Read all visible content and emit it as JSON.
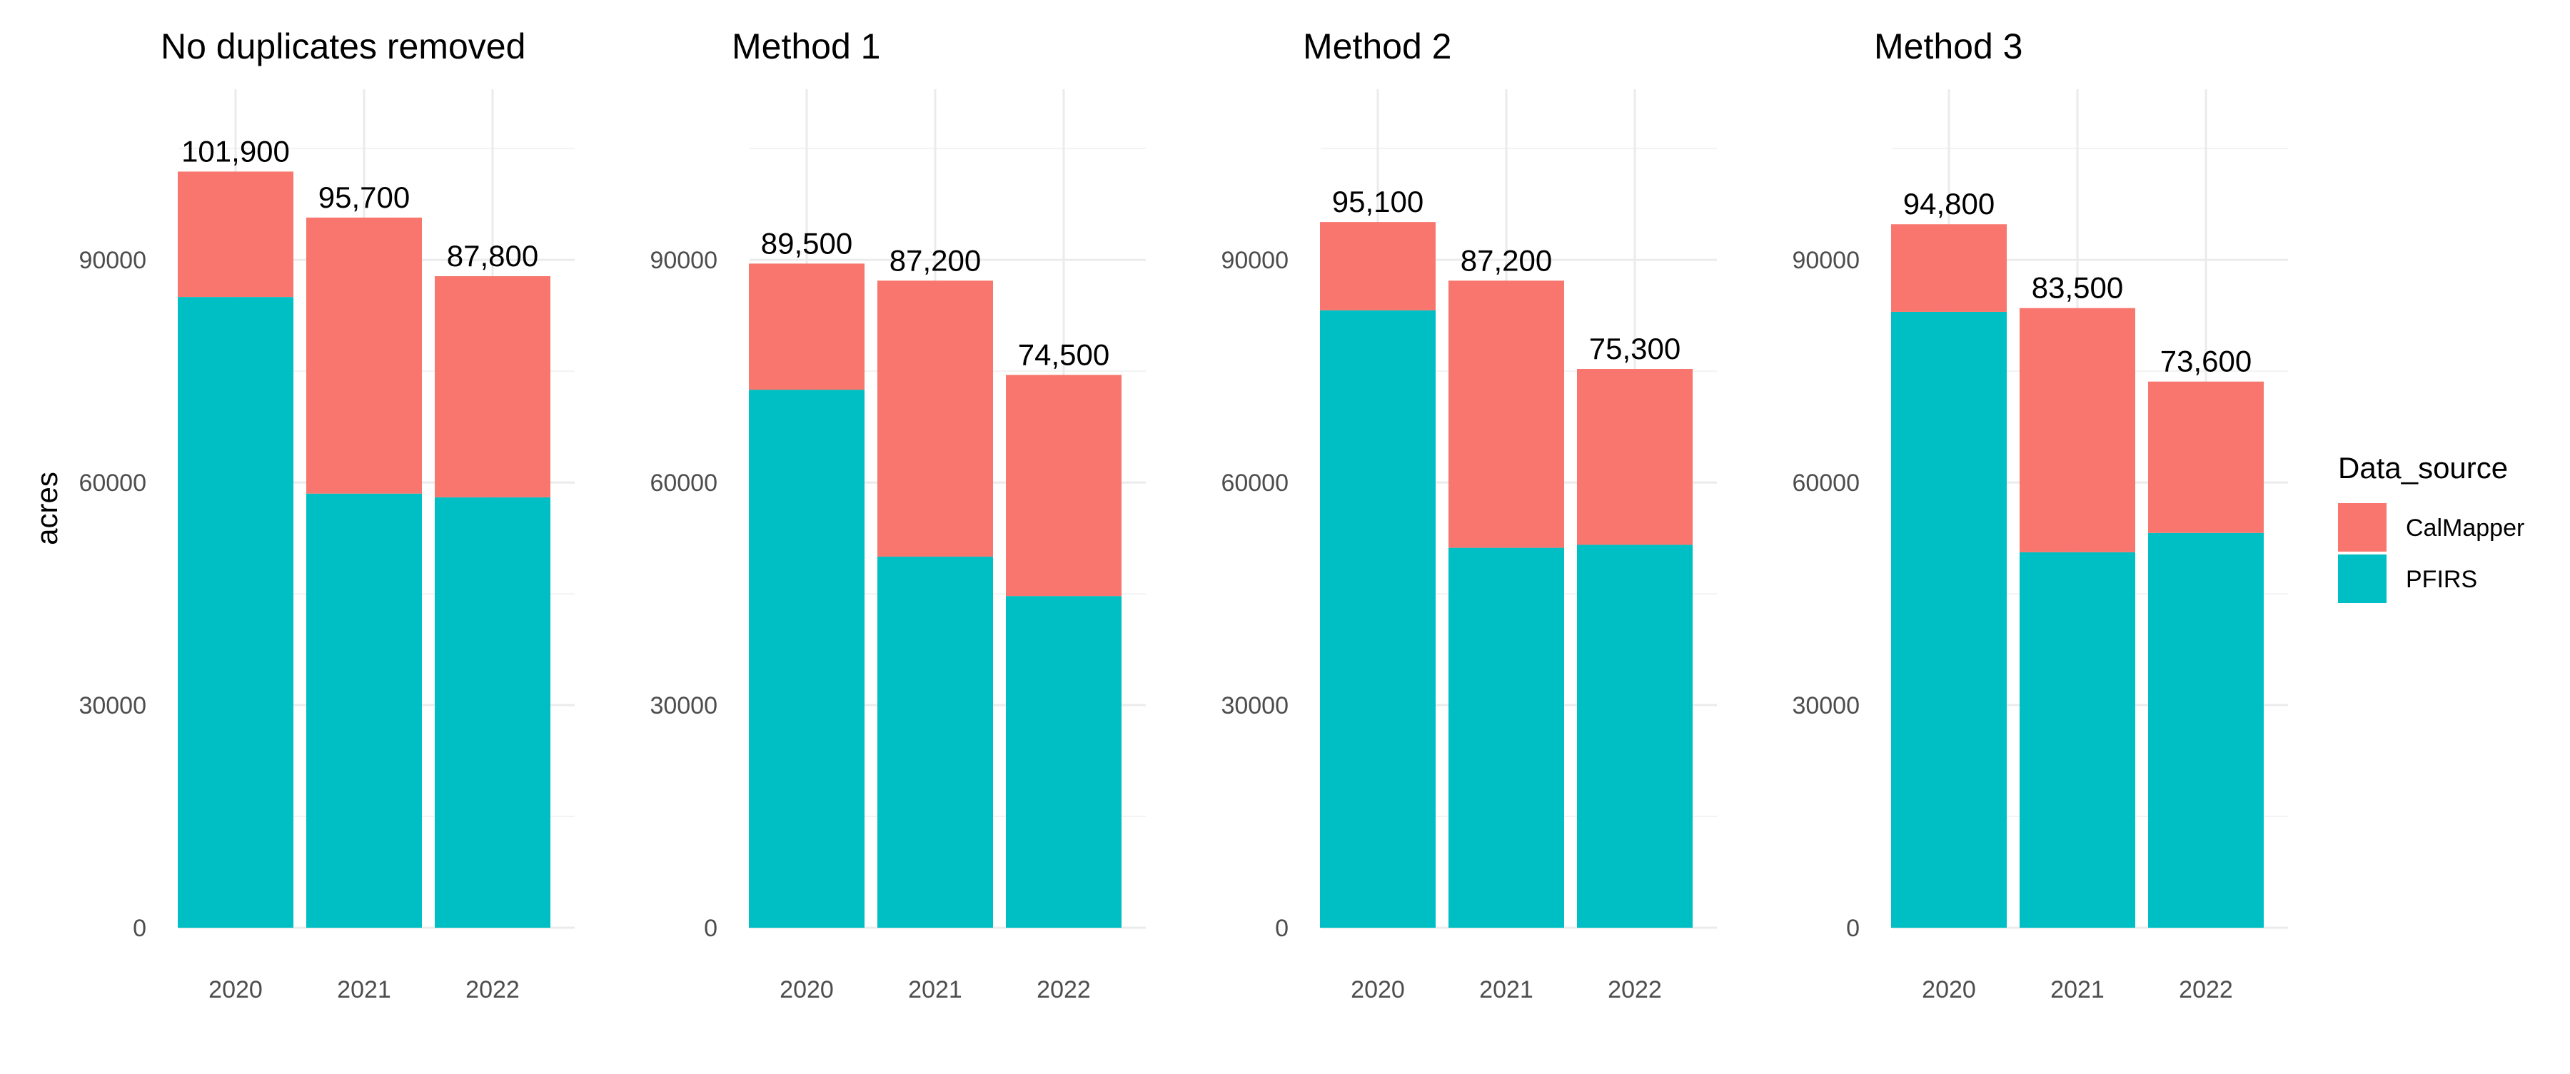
{
  "chart_data": {
    "type": "bar",
    "stacked": true,
    "ylabel": "acres",
    "xlabel": "",
    "ylim": [
      0,
      113000
    ],
    "yticks": [
      0,
      30000,
      60000,
      90000
    ],
    "grid": true,
    "colors": {
      "CalMapper": "#F8766D",
      "PFIRS": "#00BFC4"
    },
    "legend": {
      "title": "Data_source",
      "placement": "right",
      "entries": [
        "CalMapper",
        "PFIRS"
      ]
    },
    "panels": [
      {
        "title": "No duplicates removed",
        "categories": [
          "2020",
          "2021",
          "2022"
        ],
        "series": [
          {
            "name": "PFIRS",
            "values": [
              85000,
              58500,
              58000
            ]
          },
          {
            "name": "CalMapper",
            "values": [
              16900,
              37200,
              29800
            ]
          }
        ],
        "totals": [
          "101,900",
          "95,700",
          "87,800"
        ]
      },
      {
        "title": "Method 1",
        "categories": [
          "2020",
          "2021",
          "2022"
        ],
        "series": [
          {
            "name": "PFIRS",
            "values": [
              72500,
              50000,
              44700
            ]
          },
          {
            "name": "CalMapper",
            "values": [
              17000,
              37200,
              29800
            ]
          }
        ],
        "totals": [
          "89,500",
          "87,200",
          "74,500"
        ]
      },
      {
        "title": "Method 2",
        "categories": [
          "2020",
          "2021",
          "2022"
        ],
        "series": [
          {
            "name": "PFIRS",
            "values": [
              83200,
              51200,
              51600
            ]
          },
          {
            "name": "CalMapper",
            "values": [
              11900,
              36000,
              23700
            ]
          }
        ],
        "totals": [
          "95,100",
          "87,200",
          "75,300"
        ]
      },
      {
        "title": "Method 3",
        "categories": [
          "2020",
          "2021",
          "2022"
        ],
        "series": [
          {
            "name": "PFIRS",
            "values": [
              83000,
              50600,
              53200
            ]
          },
          {
            "name": "CalMapper",
            "values": [
              11800,
              32900,
              20400
            ]
          }
        ],
        "totals": [
          "94,800",
          "83,500",
          "73,600"
        ]
      }
    ]
  }
}
